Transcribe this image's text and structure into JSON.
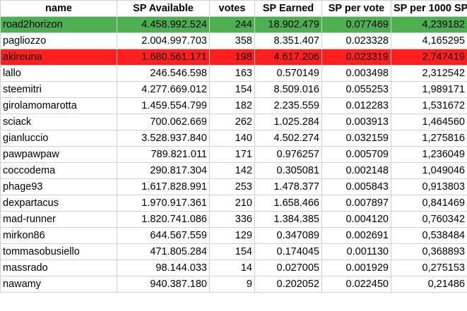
{
  "table": {
    "headers": [
      "name",
      "SP Available",
      "votes",
      "SP Earned",
      "SP per vote",
      "SP per 1000 SP"
    ],
    "rows": [
      {
        "name": "road2horizon",
        "sp_available": "4.458.992.524",
        "votes": "244",
        "sp_earned": "18.902.479",
        "sp_per_vote": "0.077469",
        "sp_per_1000": "4,239182",
        "highlight": "green"
      },
      {
        "name": "pagliozzo",
        "sp_available": "2.004.997.703",
        "votes": "358",
        "sp_earned": "8.351.407",
        "sp_per_vote": "0.023328",
        "sp_per_1000": "4,165295",
        "highlight": ""
      },
      {
        "name": "akireuna",
        "sp_available": "1.680.561.171",
        "votes": "198",
        "sp_earned": "4.617.206",
        "sp_per_vote": "0.023319",
        "sp_per_1000": "2,747419",
        "highlight": "red"
      },
      {
        "name": "lallo",
        "sp_available": "246.546.598",
        "votes": "163",
        "sp_earned": "0.570149",
        "sp_per_vote": "0.003498",
        "sp_per_1000": "2,312542",
        "highlight": ""
      },
      {
        "name": "steemitri",
        "sp_available": "4.277.669.012",
        "votes": "154",
        "sp_earned": "8.509.016",
        "sp_per_vote": "0.055253",
        "sp_per_1000": "1,989171",
        "highlight": ""
      },
      {
        "name": "girolamomarotta",
        "sp_available": "1.459.554.799",
        "votes": "182",
        "sp_earned": "2.235.559",
        "sp_per_vote": "0.012283",
        "sp_per_1000": "1,531672",
        "highlight": ""
      },
      {
        "name": "sciack",
        "sp_available": "700.062.669",
        "votes": "262",
        "sp_earned": "1.025.284",
        "sp_per_vote": "0.003913",
        "sp_per_1000": "1,464560",
        "highlight": ""
      },
      {
        "name": "gianluccio",
        "sp_available": "3.528.937.840",
        "votes": "140",
        "sp_earned": "4.502.274",
        "sp_per_vote": "0.032159",
        "sp_per_1000": "1,275816",
        "highlight": ""
      },
      {
        "name": "pawpawpaw",
        "sp_available": "789.821.011",
        "votes": "171",
        "sp_earned": "0.976257",
        "sp_per_vote": "0.005709",
        "sp_per_1000": "1,236049",
        "highlight": ""
      },
      {
        "name": "coccodema",
        "sp_available": "290.817.304",
        "votes": "142",
        "sp_earned": "0.305081",
        "sp_per_vote": "0.002148",
        "sp_per_1000": "1,049046",
        "highlight": ""
      },
      {
        "name": "phage93",
        "sp_available": "1.617.828.991",
        "votes": "253",
        "sp_earned": "1.478.377",
        "sp_per_vote": "0.005843",
        "sp_per_1000": "0,913803",
        "highlight": ""
      },
      {
        "name": "dexpartacus",
        "sp_available": "1.970.917.361",
        "votes": "210",
        "sp_earned": "1.658.466",
        "sp_per_vote": "0.007897",
        "sp_per_1000": "0,841469",
        "highlight": ""
      },
      {
        "name": "mad-runner",
        "sp_available": "1.820.741.086",
        "votes": "336",
        "sp_earned": "1.384.385",
        "sp_per_vote": "0.004120",
        "sp_per_1000": "0,760342",
        "highlight": ""
      },
      {
        "name": "mirkon86",
        "sp_available": "644.567.559",
        "votes": "129",
        "sp_earned": "0.347089",
        "sp_per_vote": "0.002691",
        "sp_per_1000": "0,538484",
        "highlight": ""
      },
      {
        "name": "tommasobusiello",
        "sp_available": "471.805.284",
        "votes": "154",
        "sp_earned": "0.174045",
        "sp_per_vote": "0.001130",
        "sp_per_1000": "0,368893",
        "highlight": ""
      },
      {
        "name": "massrado",
        "sp_available": "98.144.033",
        "votes": "14",
        "sp_earned": "0.027005",
        "sp_per_vote": "0.001929",
        "sp_per_1000": "0,275153",
        "highlight": ""
      },
      {
        "name": "nawamy",
        "sp_available": "940.387.180",
        "votes": "9",
        "sp_earned": "0.202052",
        "sp_per_vote": "0.022450",
        "sp_per_1000": "0,21486",
        "highlight": ""
      }
    ]
  },
  "colors": {
    "highlight_green": "#4caf50",
    "highlight_red": "#ff1f1f",
    "grid": "#d0d0d0"
  }
}
